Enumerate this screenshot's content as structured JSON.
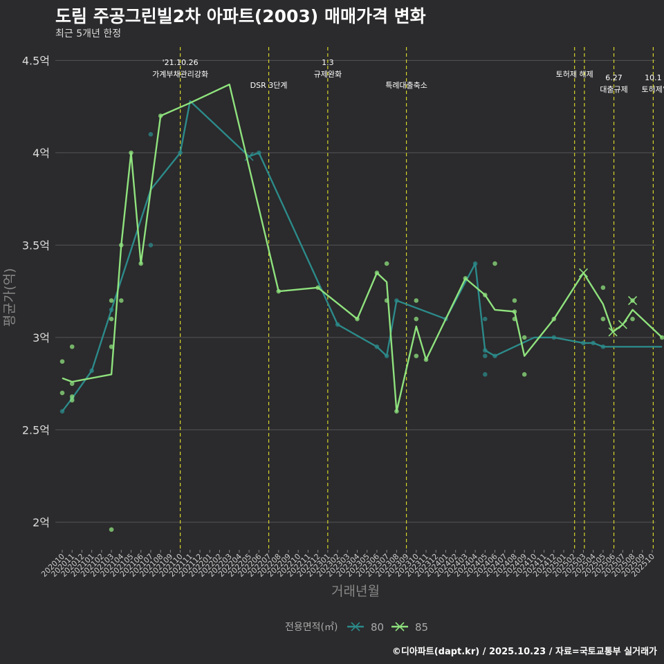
{
  "header": {
    "title": "도림 주공그린빌2차 아파트(2003) 매매가격 변화",
    "subtitle": "최근 5개년 한정"
  },
  "caption": "©디아파트(dapt.kr) / 2025.10.23 / 자료=국토교통부 실거래가",
  "colors": {
    "background": "#2b2a2c",
    "grid": "#555458",
    "vline": "#d6d62a",
    "series_80": "#2c8a8a",
    "series_85": "#8fe27e"
  },
  "chart_data": {
    "type": "line",
    "xlabel": "거래년월",
    "ylabel": "평균가(억)",
    "ylim": [
      1.85,
      4.58
    ],
    "yticks": [
      2,
      2.5,
      3,
      3.5,
      4,
      4.5
    ],
    "ytick_labels": [
      "2억",
      "2.5억",
      "3억",
      "3.5억",
      "4억",
      "4.5억"
    ],
    "x": [
      "202010",
      "202011",
      "202012",
      "202101",
      "202102",
      "202103",
      "202104",
      "202105",
      "202106",
      "202107",
      "202108",
      "202109",
      "202110",
      "202111",
      "202112",
      "202201",
      "202202",
      "202203",
      "202204",
      "202205",
      "202206",
      "202207",
      "202208",
      "202209",
      "202210",
      "202211",
      "202212",
      "202301",
      "202302",
      "202303",
      "202304",
      "202305",
      "202306",
      "202307",
      "202308",
      "202309",
      "202310",
      "202311",
      "202312",
      "202401",
      "202402",
      "202403",
      "202404",
      "202405",
      "202406",
      "202407",
      "202408",
      "202409",
      "202410",
      "202411",
      "202412",
      "202501",
      "202502",
      "202503",
      "202504",
      "202505",
      "202506",
      "202507",
      "202508",
      "202509",
      "202510"
    ],
    "legend": {
      "title": "전용면적(㎡)",
      "position": "bottom"
    },
    "series": [
      {
        "name": "80",
        "line": [
          [
            0,
            2.6
          ],
          [
            1,
            2.67
          ],
          [
            3,
            2.82
          ],
          [
            5,
            3.15
          ],
          [
            9,
            3.8
          ],
          [
            12,
            4.0
          ],
          [
            13,
            4.28
          ],
          [
            19,
            3.98
          ],
          [
            20,
            4.0
          ],
          [
            28,
            3.07
          ],
          [
            32,
            2.95
          ],
          [
            33,
            2.9
          ],
          [
            34,
            3.2
          ],
          [
            39,
            3.1
          ],
          [
            42,
            3.4
          ],
          [
            43,
            2.93
          ],
          [
            44,
            2.9
          ],
          [
            48,
            3.0
          ],
          [
            50,
            3.0
          ],
          [
            53,
            2.97
          ],
          [
            54,
            2.97
          ],
          [
            55,
            2.95
          ],
          [
            61,
            2.95
          ]
        ],
        "points": [
          [
            0,
            2.6
          ],
          [
            1,
            2.67
          ],
          [
            3,
            2.82
          ],
          [
            5,
            3.15
          ],
          [
            9,
            4.1
          ],
          [
            9,
            3.5
          ],
          [
            12,
            4.0
          ],
          [
            20,
            4.0
          ],
          [
            28,
            3.07
          ],
          [
            32,
            2.95
          ],
          [
            33,
            2.9
          ],
          [
            34,
            3.2
          ],
          [
            39,
            3.1
          ],
          [
            42,
            3.4
          ],
          [
            43,
            2.93
          ],
          [
            43,
            3.1
          ],
          [
            43,
            2.9
          ],
          [
            43,
            2.8
          ],
          [
            44,
            2.9
          ],
          [
            50,
            3.0
          ],
          [
            53,
            2.97
          ],
          [
            54,
            2.97
          ],
          [
            55,
            2.95
          ]
        ],
        "crosses": [
          [
            19,
            3.98
          ]
        ]
      },
      {
        "name": "85",
        "line": [
          [
            0,
            2.78
          ],
          [
            1,
            2.76
          ],
          [
            5,
            2.8
          ],
          [
            6,
            3.5
          ],
          [
            7,
            4.0
          ],
          [
            8,
            3.4
          ],
          [
            10,
            4.2
          ],
          [
            13,
            4.27
          ],
          [
            17,
            4.37
          ],
          [
            22,
            3.25
          ],
          [
            26,
            3.27
          ],
          [
            30,
            3.1
          ],
          [
            32,
            3.35
          ],
          [
            33,
            3.3
          ],
          [
            34,
            2.6
          ],
          [
            36,
            3.06
          ],
          [
            37,
            2.88
          ],
          [
            41,
            3.32
          ],
          [
            43,
            3.23
          ],
          [
            44,
            3.15
          ],
          [
            46,
            3.14
          ],
          [
            47,
            2.9
          ],
          [
            50,
            3.1
          ],
          [
            53,
            3.35
          ],
          [
            55,
            3.18
          ],
          [
            56,
            3.03
          ],
          [
            57,
            3.07
          ],
          [
            58,
            3.15
          ],
          [
            61,
            3.0
          ]
        ],
        "points": [
          [
            0,
            2.87
          ],
          [
            0,
            2.7
          ],
          [
            1,
            2.95
          ],
          [
            1,
            2.75
          ],
          [
            1,
            2.68
          ],
          [
            1,
            2.66
          ],
          [
            5,
            3.2
          ],
          [
            5,
            3.1
          ],
          [
            5,
            2.95
          ],
          [
            5,
            1.96
          ],
          [
            6,
            3.5
          ],
          [
            6,
            3.2
          ],
          [
            7,
            4.0
          ],
          [
            8,
            3.4
          ],
          [
            10,
            4.2
          ],
          [
            22,
            3.25
          ],
          [
            26,
            3.27
          ],
          [
            30,
            3.1
          ],
          [
            32,
            3.35
          ],
          [
            33,
            3.4
          ],
          [
            33,
            3.2
          ],
          [
            34,
            2.6
          ],
          [
            36,
            3.2
          ],
          [
            36,
            3.1
          ],
          [
            36,
            2.9
          ],
          [
            37,
            2.88
          ],
          [
            41,
            3.32
          ],
          [
            43,
            3.23
          ],
          [
            44,
            3.4
          ],
          [
            46,
            3.2
          ],
          [
            46,
            3.14
          ],
          [
            46,
            3.1
          ],
          [
            47,
            3.0
          ],
          [
            47,
            2.8
          ],
          [
            50,
            3.1
          ],
          [
            55,
            3.27
          ],
          [
            55,
            3.1
          ],
          [
            58,
            3.2
          ],
          [
            58,
            3.1
          ],
          [
            61,
            3.0
          ]
        ],
        "crosses": [
          [
            53,
            3.35
          ],
          [
            56,
            3.03
          ],
          [
            57,
            3.07
          ],
          [
            58,
            3.2
          ]
        ]
      }
    ],
    "events": [
      {
        "xi": 12.0,
        "label": "'21.10.26\n가계부채관리강화",
        "level": 0
      },
      {
        "xi": 21.0,
        "label": "DSR 3단계",
        "level": 1
      },
      {
        "xi": 27.0,
        "label": "1.3\n규제완화",
        "level": 0
      },
      {
        "xi": 35.0,
        "label": "특례대출축소",
        "level": 1
      },
      {
        "xi": 52.1,
        "label": "토허제 해제",
        "level": 0
      },
      {
        "xi": 53.1,
        "label": "",
        "level": 0
      },
      {
        "xi": 56.1,
        "label": "6.27\n대출규제",
        "level": 2
      },
      {
        "xi": 60.1,
        "label": "10.1\n토허제’",
        "level": 2
      }
    ]
  }
}
